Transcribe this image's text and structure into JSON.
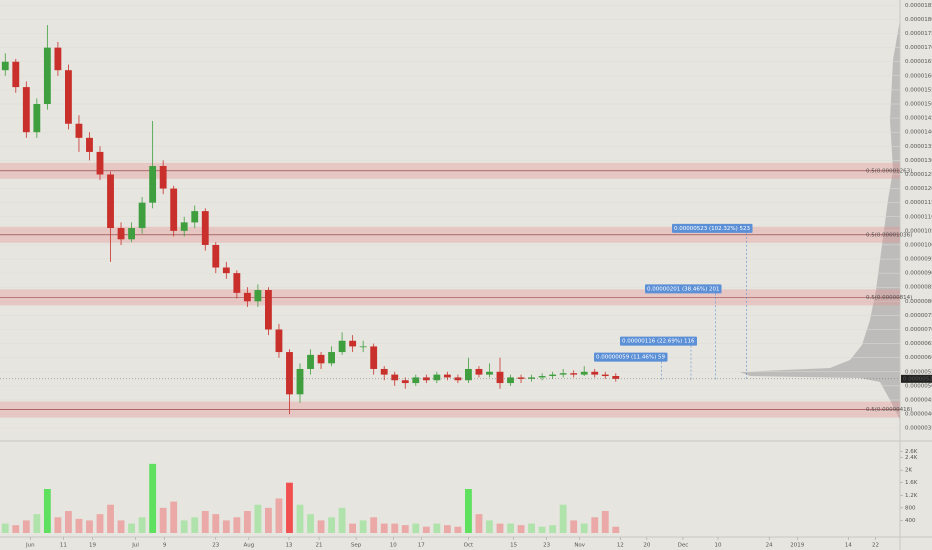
{
  "chart_data": {
    "type": "candlestick",
    "colors": {
      "up": "#3f9f3f",
      "down": "#c9302c",
      "volume_up": "#5fe05f",
      "volume_down": "#f05050"
    },
    "ohlc": [
      [
        1.62e-05,
        1.68e-05,
        1.6e-05,
        1.65e-05
      ],
      [
        1.65e-05,
        1.66e-05,
        1.54e-05,
        1.56e-05
      ],
      [
        1.56e-05,
        1.58e-05,
        1.38e-05,
        1.4e-05
      ],
      [
        1.4e-05,
        1.52e-05,
        1.38e-05,
        1.5e-05
      ],
      [
        1.5e-05,
        1.78e-05,
        1.48e-05,
        1.7e-05
      ],
      [
        1.7e-05,
        1.72e-05,
        1.6e-05,
        1.62e-05
      ],
      [
        1.62e-05,
        1.64e-05,
        1.41e-05,
        1.43e-05
      ],
      [
        1.43e-05,
        1.46e-05,
        1.33e-05,
        1.38e-05
      ],
      [
        1.38e-05,
        1.4e-05,
        1.3e-05,
        1.33e-05
      ],
      [
        1.33e-05,
        1.35e-05,
        1.23e-05,
        1.25e-05
      ],
      [
        1.25e-05,
        1.26e-05,
        9.4e-06,
        1.06e-05
      ],
      [
        1.06e-05,
        1.08e-05,
        1e-05,
        1.02e-05
      ],
      [
        1.02e-05,
        1.08e-05,
        1.01e-05,
        1.06e-05
      ],
      [
        1.06e-05,
        1.17e-05,
        1.04e-05,
        1.15e-05
      ],
      [
        1.15e-05,
        1.44e-05,
        1.13e-05,
        1.28e-05
      ],
      [
        1.28e-05,
        1.3e-05,
        1.18e-05,
        1.2e-05
      ],
      [
        1.2e-05,
        1.21e-05,
        1.03e-05,
        1.05e-05
      ],
      [
        1.05e-05,
        1.1e-05,
        1.03e-05,
        1.08e-05
      ],
      [
        1.08e-05,
        1.14e-05,
        1.06e-05,
        1.12e-05
      ],
      [
        1.12e-05,
        1.13e-05,
        9.8e-06,
        1e-05
      ],
      [
        1e-05,
        1.01e-05,
        9e-06,
        9.2e-06
      ],
      [
        9.2e-06,
        9.4e-06,
        8.8e-06,
        9e-06
      ],
      [
        9e-06,
        9.1e-06,
        8.1e-06,
        8.3e-06
      ],
      [
        8.3e-06,
        8.5e-06,
        7.8e-06,
        8e-06
      ],
      [
        8e-06,
        8.6e-06,
        7.8e-06,
        8.4e-06
      ],
      [
        8.4e-06,
        8.5e-06,
        6.8e-06,
        7e-06
      ],
      [
        7e-06,
        7.2e-06,
        6e-06,
        6.2e-06
      ],
      [
        6.2e-06,
        6.3e-06,
        4e-06,
        4.7e-06
      ],
      [
        4.7e-06,
        5.8e-06,
        4.4e-06,
        5.6e-06
      ],
      [
        5.6e-06,
        6.3e-06,
        5.4e-06,
        6.1e-06
      ],
      [
        6.1e-06,
        6.2e-06,
        5.6e-06,
        5.8e-06
      ],
      [
        5.8e-06,
        6.4e-06,
        5.7e-06,
        6.2e-06
      ],
      [
        6.2e-06,
        6.9e-06,
        6.1e-06,
        6.6e-06
      ],
      [
        6.6e-06,
        6.8e-06,
        6.2e-06,
        6.4e-06
      ],
      [
        6.4e-06,
        6.6e-06,
        6.2e-06,
        6.4e-06
      ],
      [
        6.4e-06,
        6.5e-06,
        5.4e-06,
        5.6e-06
      ],
      [
        5.6e-06,
        5.7e-06,
        5.2e-06,
        5.4e-06
      ],
      [
        5.4e-06,
        5.5e-06,
        5e-06,
        5.2e-06
      ],
      [
        5.2e-06,
        5.3e-06,
        4.9e-06,
        5.1e-06
      ],
      [
        5.1e-06,
        5.4e-06,
        5e-06,
        5.3e-06
      ],
      [
        5.3e-06,
        5.4e-06,
        5.1e-06,
        5.2e-06
      ],
      [
        5.2e-06,
        5.5e-06,
        5.1e-06,
        5.4e-06
      ],
      [
        5.4e-06,
        5.5e-06,
        5.2e-06,
        5.3e-06
      ],
      [
        5.3e-06,
        5.4e-06,
        5.1e-06,
        5.2e-06
      ],
      [
        5.2e-06,
        6e-06,
        5.1e-06,
        5.6e-06
      ],
      [
        5.6e-06,
        5.7e-06,
        5.3e-06,
        5.4e-06
      ],
      [
        5.4e-06,
        5.8e-06,
        5.3e-06,
        5.5e-06
      ],
      [
        5.5e-06,
        6e-06,
        4.9e-06,
        5.1e-06
      ],
      [
        5.1e-06,
        5.4e-06,
        5e-06,
        5.3e-06
      ],
      [
        5.3e-06,
        5.4e-06,
        5.1e-06,
        5.25e-06
      ],
      [
        5.25e-06,
        5.4e-06,
        5.15e-06,
        5.3e-06
      ],
      [
        5.3e-06,
        5.45e-06,
        5.2e-06,
        5.35e-06
      ],
      [
        5.35e-06,
        5.5e-06,
        5.25e-06,
        5.4e-06
      ],
      [
        5.4e-06,
        5.6e-06,
        5.3e-06,
        5.45e-06
      ],
      [
        5.45e-06,
        5.55e-06,
        5.3e-06,
        5.4e-06
      ],
      [
        5.4e-06,
        5.7e-06,
        5.35e-06,
        5.5e-06
      ],
      [
        5.5e-06,
        5.6e-06,
        5.3e-06,
        5.4e-06
      ],
      [
        5.4e-06,
        5.5e-06,
        5.25e-06,
        5.35e-06
      ],
      [
        5.35e-06,
        5.45e-06,
        5.15e-06,
        5.25e-06
      ]
    ],
    "volume": [
      300,
      250,
      400,
      600,
      1400,
      500,
      700,
      450,
      400,
      600,
      900,
      400,
      300,
      500,
      2200,
      800,
      1000,
      400,
      500,
      700,
      600,
      400,
      500,
      700,
      900,
      800,
      1100,
      1600,
      900,
      600,
      400,
      500,
      800,
      300,
      400,
      500,
      300,
      300,
      250,
      300,
      200,
      300,
      250,
      200,
      1400,
      600,
      400,
      300,
      300,
      250,
      300,
      200,
      250,
      900,
      400,
      300,
      500,
      700,
      200
    ],
    "xlim": [
      -0.5,
      85
    ],
    "xticks": [
      {
        "value": 2.38,
        "label": "Jun"
      },
      {
        "value": 5.52,
        "label": "11"
      },
      {
        "value": 8.29,
        "label": "19"
      },
      {
        "value": 12.38,
        "label": "Jul"
      },
      {
        "value": 15.14,
        "label": "9"
      },
      {
        "value": 20,
        "label": "23"
      },
      {
        "value": 23.14,
        "label": "Aug"
      },
      {
        "value": 26.95,
        "label": "13"
      },
      {
        "value": 29.81,
        "label": "21"
      },
      {
        "value": 33.33,
        "label": "Sep"
      },
      {
        "value": 36.86,
        "label": "10"
      },
      {
        "value": 39.52,
        "label": "17"
      },
      {
        "value": 44,
        "label": "Oct"
      },
      {
        "value": 48.29,
        "label": "15"
      },
      {
        "value": 51.43,
        "label": "23"
      },
      {
        "value": 54.57,
        "label": "Nov"
      },
      {
        "value": 58.43,
        "label": "12"
      },
      {
        "value": 60.95,
        "label": "20"
      },
      {
        "value": 64.38,
        "label": "Dec"
      },
      {
        "value": 67.71,
        "label": "10"
      },
      {
        "value": 72.57,
        "label": "24"
      },
      {
        "value": 75.24,
        "label": "2019"
      },
      {
        "value": 80.1,
        "label": "14"
      },
      {
        "value": 82.67,
        "label": "22"
      }
    ],
    "ylim": [
      3.08e-06,
      1.869e-05
    ],
    "yticks": [
      {
        "value": 3.5e-06,
        "label": "0.00000350"
      },
      {
        "value": 4e-06,
        "label": "0.00000400"
      },
      {
        "value": 4.5e-06,
        "label": "0.00000450"
      },
      {
        "value": 5e-06,
        "label": "0.00000500"
      },
      {
        "value": 5.5e-06,
        "label": "0.00000550"
      },
      {
        "value": 6e-06,
        "label": "0.00000600"
      },
      {
        "value": 6.5e-06,
        "label": "0.00000650"
      },
      {
        "value": 7e-06,
        "label": "0.00000700"
      },
      {
        "value": 7.5e-06,
        "label": "0.00000750"
      },
      {
        "value": 8e-06,
        "label": "0.00000800"
      },
      {
        "value": 8.5e-06,
        "label": "0.00000850"
      },
      {
        "value": 9e-06,
        "label": "0.00000900"
      },
      {
        "value": 9.5e-06,
        "label": "0.00000950"
      },
      {
        "value": 1e-05,
        "label": "0.00001000"
      },
      {
        "value": 1.05e-05,
        "label": "0.00001050"
      },
      {
        "value": 1.1e-05,
        "label": "0.00001100"
      },
      {
        "value": 1.15e-05,
        "label": "0.00001150"
      },
      {
        "value": 1.2e-05,
        "label": "0.00001200"
      },
      {
        "value": 1.25e-05,
        "label": "0.00001250"
      },
      {
        "value": 1.3e-05,
        "label": "0.00001300"
      },
      {
        "value": 1.35e-05,
        "label": "0.00001350"
      },
      {
        "value": 1.4e-05,
        "label": "0.00001400"
      },
      {
        "value": 1.45e-05,
        "label": "0.00001450"
      },
      {
        "value": 1.5e-05,
        "label": "0.00001500"
      },
      {
        "value": 1.55e-05,
        "label": "0.00001550"
      },
      {
        "value": 1.6e-05,
        "label": "0.00001600"
      },
      {
        "value": 1.65e-05,
        "label": "0.00001650"
      },
      {
        "value": 1.7e-05,
        "label": "0.00001700"
      },
      {
        "value": 1.75e-05,
        "label": "0.00001750"
      },
      {
        "value": 1.8e-05,
        "label": "0.00001800"
      },
      {
        "value": 1.85e-05,
        "label": "0.00001850"
      }
    ],
    "y2lim": [
      0,
      2800
    ],
    "y2ticks": [
      400,
      800,
      {
        "value": 1200,
        "label": "1.2K"
      },
      {
        "value": 1600,
        "label": "1.6K"
      },
      {
        "value": 2000,
        "label": "2K"
      },
      {
        "value": 2400,
        "label": "2.4K"
      },
      {
        "value": 2600,
        "label": "2.6K"
      }
    ],
    "last_price": {
      "value": 5.25e-06,
      "label": "0.00000525"
    },
    "zones": [
      {
        "level": 1.263e-05,
        "label": "0.5(0.00001263)"
      },
      {
        "level": 1.036e-05,
        "label": "0.5(0.00001036)"
      },
      {
        "level": 8.14e-06,
        "label": "0.5(0.00000814)"
      },
      {
        "level": 4.16e-06,
        "label": "0.5(0.00000416)"
      }
    ],
    "annotations": [
      {
        "price": 6.02e-06,
        "text": "0.00000059 (11.46%) 59"
      },
      {
        "price": 6.59e-06,
        "text": "0.00000116 (22.69%) 116"
      },
      {
        "price": 8.44e-06,
        "text": "0.00000201 (38.46%) 201"
      },
      {
        "price": 1.059e-05,
        "text": "0.00000523 (102.32%) 523"
      }
    ]
  }
}
